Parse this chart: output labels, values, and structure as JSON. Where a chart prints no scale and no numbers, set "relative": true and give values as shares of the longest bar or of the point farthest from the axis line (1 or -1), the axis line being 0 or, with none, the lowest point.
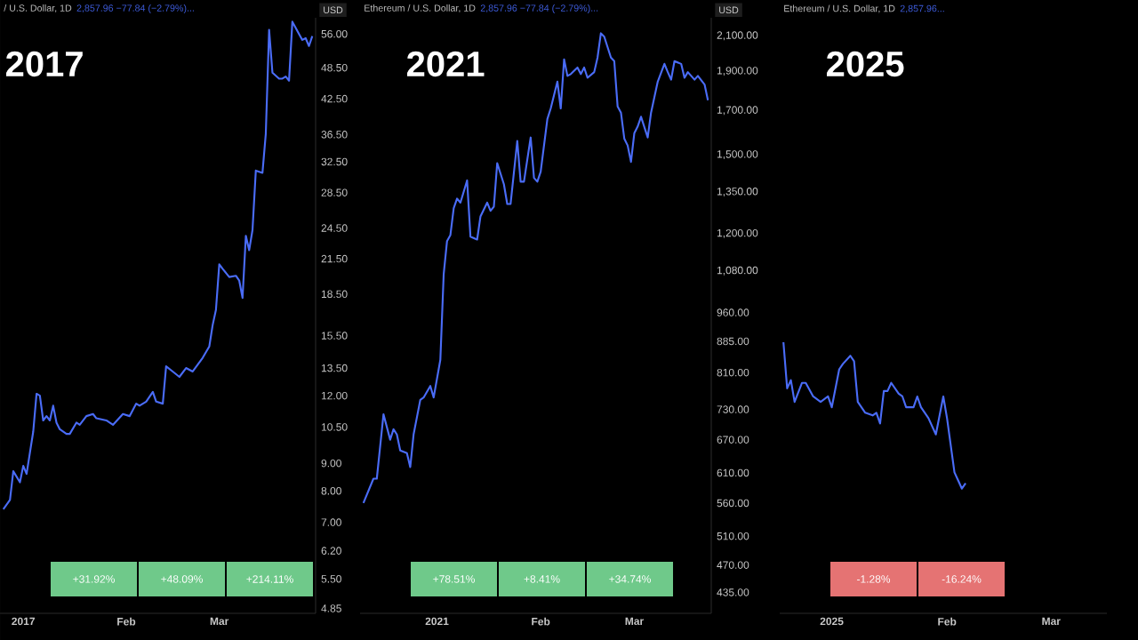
{
  "chart_data": [
    {
      "type": "line",
      "title": "2017",
      "subtitle": "/ U.S. Dollar, 1D",
      "ylabel": "USD",
      "log": true,
      "color": "#4a6cf7",
      "annotations": [
        "2,857.96 −77.84 (−2.79%)...",
        "+31.92%",
        "+48.09%",
        "+214.11%"
      ],
      "xlim": [
        "2016-12-25",
        "2017-03-30"
      ],
      "xticks": [
        {
          "value": "2017-01-01",
          "label": "2017"
        },
        {
          "value": "2017-02-01",
          "label": "Feb"
        },
        {
          "value": "2017-03-01",
          "label": "Mar"
        }
      ],
      "ylim": [
        4.75,
        60
      ],
      "yticks": [
        {
          "value": 56,
          "label": "56.00"
        },
        {
          "value": 48.5,
          "label": "48.50"
        },
        {
          "value": 42.5,
          "label": "42.50"
        },
        {
          "value": 36.5,
          "label": "36.50"
        },
        {
          "value": 32.5,
          "label": "32.50"
        },
        {
          "value": 28.5,
          "label": "28.50"
        },
        {
          "value": 24.5,
          "label": "24.50"
        },
        {
          "value": 21.5,
          "label": "21.50"
        },
        {
          "value": 18.5,
          "label": "18.50"
        },
        {
          "value": 15.5,
          "label": "15.50"
        },
        {
          "value": 13.5,
          "label": "13.50"
        },
        {
          "value": 12,
          "label": "12.00"
        },
        {
          "value": 10.5,
          "label": "10.50"
        },
        {
          "value": 9,
          "label": "9.00"
        },
        {
          "value": 8,
          "label": "8.00"
        },
        {
          "value": 7,
          "label": "7.00"
        },
        {
          "value": 6.2,
          "label": "6.20"
        },
        {
          "value": 5.5,
          "label": "5.50"
        },
        {
          "value": 4.85,
          "label": "4.85"
        }
      ],
      "x": [
        "2016-12-26",
        "2016-12-28",
        "2016-12-29",
        "2016-12-31",
        "2017-01-01",
        "2017-01-02",
        "2017-01-04",
        "2017-01-05",
        "2017-01-06",
        "2017-01-07",
        "2017-01-08",
        "2017-01-09",
        "2017-01-10",
        "2017-01-11",
        "2017-01-12",
        "2017-01-14",
        "2017-01-15",
        "2017-01-17",
        "2017-01-18",
        "2017-01-20",
        "2017-01-22",
        "2017-01-23",
        "2017-01-26",
        "2017-01-28",
        "2017-01-31",
        "2017-02-02",
        "2017-02-04",
        "2017-02-05",
        "2017-02-07",
        "2017-02-09",
        "2017-02-10",
        "2017-02-12",
        "2017-02-13",
        "2017-02-15",
        "2017-02-17",
        "2017-02-19",
        "2017-02-21",
        "2017-02-24",
        "2017-02-26",
        "2017-02-27",
        "2017-02-28",
        "2017-03-01",
        "2017-03-02",
        "2017-03-04",
        "2017-03-06",
        "2017-03-07",
        "2017-03-08",
        "2017-03-09",
        "2017-03-10",
        "2017-03-11",
        "2017-03-12",
        "2017-03-14",
        "2017-03-15",
        "2017-03-16",
        "2017-03-17",
        "2017-03-19",
        "2017-03-20",
        "2017-03-21",
        "2017-03-22",
        "2017-03-23",
        "2017-03-25",
        "2017-03-26",
        "2017-03-27",
        "2017-03-28",
        "2017-03-29"
      ],
      "values": [
        7.4,
        7.7,
        8.7,
        8.3,
        8.9,
        8.6,
        10.3,
        12.1,
        12.0,
        10.8,
        11.0,
        10.8,
        11.5,
        10.7,
        10.4,
        10.2,
        10.2,
        10.7,
        10.6,
        11.0,
        11.1,
        10.9,
        10.8,
        10.6,
        11.1,
        11.0,
        11.6,
        11.5,
        11.7,
        12.2,
        11.7,
        11.6,
        13.6,
        13.3,
        13.0,
        13.5,
        13.3,
        14.1,
        14.8,
        16.2,
        17.3,
        21.0,
        20.6,
        19.9,
        20.0,
        19.6,
        18.2,
        23.7,
        22.3,
        24.3,
        31.3,
        31.0,
        36.6,
        57.0,
        47.5,
        46.3,
        46.3,
        46.7,
        45.9,
        59.0,
        56.0,
        54.6,
        55.0,
        53.2,
        55.5
      ]
    },
    {
      "type": "line",
      "title": "2021",
      "subtitle": "Ethereum / U.S. Dollar, 1D",
      "ylabel": "USD",
      "log": true,
      "color": "#4a6cf7",
      "annotations": [
        "2,857.96 −77.84 (−2.79%)...",
        "+78.51%",
        "+8.41%",
        "+34.74%"
      ],
      "xlim": [
        "2020-12-09",
        "2021-03-24"
      ],
      "xticks": [
        {
          "value": "2021-01-01",
          "label": "2021"
        },
        {
          "value": "2021-02-01",
          "label": "Feb"
        },
        {
          "value": "2021-03-01",
          "label": "Mar"
        }
      ],
      "ylim": [
        410,
        2210
      ],
      "yticks": [
        {
          "value": 2100,
          "label": "2,100.00"
        },
        {
          "value": 1900,
          "label": "1,900.00"
        },
        {
          "value": 1700,
          "label": "1,700.00"
        },
        {
          "value": 1500,
          "label": "1,500.00"
        },
        {
          "value": 1350,
          "label": "1,350.00"
        },
        {
          "value": 1200,
          "label": "1,200.00"
        },
        {
          "value": 1080,
          "label": "1,080.00"
        },
        {
          "value": 960,
          "label": "960.00"
        },
        {
          "value": 885,
          "label": "885.00"
        },
        {
          "value": 810,
          "label": "810.00"
        },
        {
          "value": 730,
          "label": "730.00"
        },
        {
          "value": 670,
          "label": "670.00"
        },
        {
          "value": 610,
          "label": "610.00"
        },
        {
          "value": 560,
          "label": "560.00"
        },
        {
          "value": 510,
          "label": "510.00"
        },
        {
          "value": 470,
          "label": "470.00"
        },
        {
          "value": 435,
          "label": "435.00"
        }
      ],
      "x": [
        "2020-12-10",
        "2020-12-13",
        "2020-12-14",
        "2020-12-16",
        "2020-12-18",
        "2020-12-19",
        "2020-12-20",
        "2020-12-21",
        "2020-12-23",
        "2020-12-24",
        "2020-12-25",
        "2020-12-27",
        "2020-12-28",
        "2020-12-30",
        "2020-12-31",
        "2021-01-02",
        "2021-01-03",
        "2021-01-04",
        "2021-01-05",
        "2021-01-06",
        "2021-01-07",
        "2021-01-08",
        "2021-01-10",
        "2021-01-11",
        "2021-01-13",
        "2021-01-14",
        "2021-01-16",
        "2021-01-17",
        "2021-01-18",
        "2021-01-19",
        "2021-01-21",
        "2021-01-22",
        "2021-01-23",
        "2021-01-25",
        "2021-01-26",
        "2021-01-27",
        "2021-01-29",
        "2021-01-30",
        "2021-01-31",
        "2021-02-01",
        "2021-02-03",
        "2021-02-04",
        "2021-02-06",
        "2021-02-07",
        "2021-02-08",
        "2021-02-09",
        "2021-02-10",
        "2021-02-12",
        "2021-02-13",
        "2021-02-14",
        "2021-02-15",
        "2021-02-17",
        "2021-02-18",
        "2021-02-19",
        "2021-02-20",
        "2021-02-22",
        "2021-02-23",
        "2021-02-24",
        "2021-02-25",
        "2021-02-26",
        "2021-02-27",
        "2021-02-28",
        "2021-03-01",
        "2021-03-02",
        "2021-03-03",
        "2021-03-05",
        "2021-03-06",
        "2021-03-08",
        "2021-03-10",
        "2021-03-11",
        "2021-03-12",
        "2021-03-13",
        "2021-03-15",
        "2021-03-16",
        "2021-03-17",
        "2021-03-19",
        "2021-03-20",
        "2021-03-22",
        "2021-03-23"
      ],
      "values": [
        560,
        600,
        600,
        720,
        670,
        690,
        680,
        650,
        645,
        620,
        680,
        750,
        755,
        780,
        755,
        840,
        1070,
        1175,
        1195,
        1290,
        1325,
        1310,
        1395,
        1190,
        1180,
        1260,
        1310,
        1280,
        1295,
        1465,
        1380,
        1305,
        1305,
        1560,
        1390,
        1390,
        1575,
        1405,
        1390,
        1430,
        1660,
        1710,
        1845,
        1710,
        1965,
        1875,
        1885,
        1920,
        1885,
        1920,
        1865,
        1895,
        1975,
        2115,
        2095,
        1975,
        1955,
        1720,
        1690,
        1570,
        1540,
        1470,
        1595,
        1625,
        1670,
        1575,
        1690,
        1845,
        1940,
        1895,
        1855,
        1955,
        1940,
        1865,
        1895,
        1855,
        1875,
        1830,
        1750
      ]
    },
    {
      "type": "line",
      "title": "2025",
      "subtitle": "Ethereum / U.S. Dollar, 1D",
      "relative": true,
      "color": "#4a6cf7",
      "annotations": [
        "2,857.96...",
        "-1.28%",
        "-16.24%"
      ],
      "xlim": [
        "2024-12-18",
        "2025-03-16"
      ],
      "xticks": [
        {
          "value": "2025-01-01",
          "label": "2025"
        },
        {
          "value": "2025-02-01",
          "label": "Feb"
        },
        {
          "value": "2025-03-01",
          "label": "Mar"
        }
      ],
      "x": [
        "2024-12-19",
        "2024-12-20",
        "2024-12-21",
        "2024-12-22",
        "2024-12-24",
        "2024-12-25",
        "2024-12-27",
        "2024-12-29",
        "2024-12-31",
        "2025-01-01",
        "2025-01-03",
        "2025-01-04",
        "2025-01-06",
        "2025-01-07",
        "2025-01-08",
        "2025-01-10",
        "2025-01-12",
        "2025-01-13",
        "2025-01-14",
        "2025-01-15",
        "2025-01-16",
        "2025-01-17",
        "2025-01-19",
        "2025-01-20",
        "2025-01-21",
        "2025-01-23",
        "2025-01-24",
        "2025-01-25",
        "2025-01-27",
        "2025-01-28",
        "2025-01-29",
        "2025-01-31",
        "2025-02-01",
        "2025-02-03",
        "2025-02-04",
        "2025-02-05",
        "2025-02-06"
      ],
      "values": [
        1.0,
        0.83,
        0.86,
        0.78,
        0.85,
        0.85,
        0.8,
        0.78,
        0.8,
        0.76,
        0.9,
        0.92,
        0.95,
        0.93,
        0.78,
        0.74,
        0.73,
        0.74,
        0.7,
        0.82,
        0.82,
        0.85,
        0.81,
        0.8,
        0.76,
        0.76,
        0.8,
        0.76,
        0.72,
        0.69,
        0.66,
        0.8,
        0.72,
        0.52,
        0.49,
        0.46,
        0.48
      ]
    }
  ]
}
